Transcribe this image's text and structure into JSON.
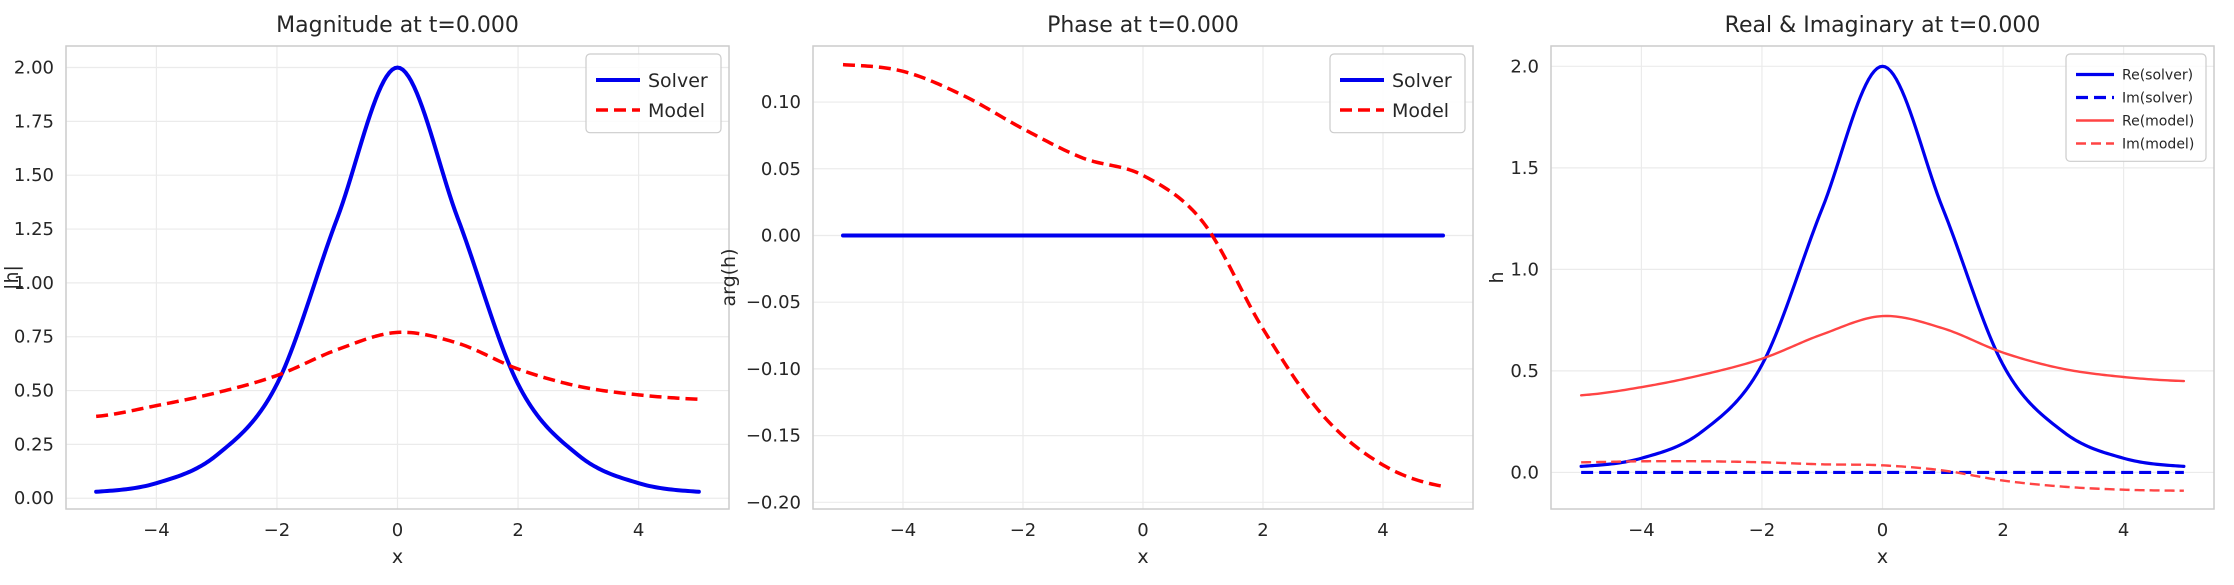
{
  "chart_data": [
    {
      "type": "line",
      "title": "Magnitude at t=0.000",
      "xlabel": "x",
      "ylabel": "|h|",
      "xlim": [
        -5.5,
        5.5
      ],
      "ylim": [
        -0.05,
        2.1
      ],
      "xticks": [
        -4,
        -2,
        0,
        2,
        4
      ],
      "xtick_labels": [
        "−4",
        "−2",
        "0",
        "2",
        "4"
      ],
      "yticks": [
        0,
        0.25,
        0.5,
        0.75,
        1.0,
        1.25,
        1.5,
        1.75,
        2.0
      ],
      "ytick_labels": [
        "0.00",
        "0.25",
        "0.50",
        "0.75",
        "1.00",
        "1.25",
        "1.50",
        "1.75",
        "2.00"
      ],
      "grid": true,
      "legend": "top-right",
      "x": [
        -5,
        -4,
        -3,
        -2,
        -1,
        0,
        1,
        2,
        3,
        4,
        5
      ],
      "series": [
        {
          "name": "Solver",
          "color": "#0000ee",
          "style": "solid",
          "width": 4,
          "values": [
            0.03,
            0.07,
            0.2,
            0.53,
            1.3,
            2.0,
            1.3,
            0.53,
            0.2,
            0.07,
            0.03
          ]
        },
        {
          "name": "Model",
          "color": "#ff0000",
          "style": "dashed",
          "width": 3.5,
          "values": [
            0.38,
            0.43,
            0.49,
            0.57,
            0.69,
            0.77,
            0.72,
            0.6,
            0.52,
            0.48,
            0.46
          ]
        }
      ]
    },
    {
      "type": "line",
      "title": "Phase at t=0.000",
      "xlabel": "x",
      "ylabel": "arg(h)",
      "xlim": [
        -5.5,
        5.5
      ],
      "ylim": [
        -0.205,
        0.142
      ],
      "xticks": [
        -4,
        -2,
        0,
        2,
        4
      ],
      "xtick_labels": [
        "−4",
        "−2",
        "0",
        "2",
        "4"
      ],
      "yticks": [
        -0.2,
        -0.15,
        -0.1,
        -0.05,
        0,
        0.05,
        0.1
      ],
      "ytick_labels": [
        "−0.20",
        "−0.15",
        "−0.10",
        "−0.05",
        "0.00",
        "0.05",
        "0.10"
      ],
      "grid": true,
      "legend": "top-right",
      "x": [
        -5,
        -4,
        -3,
        -2,
        -1,
        0,
        1,
        2,
        3,
        4,
        5
      ],
      "series": [
        {
          "name": "Solver",
          "color": "#0000ee",
          "style": "solid",
          "width": 4,
          "values": [
            0,
            0,
            0,
            0,
            0,
            0,
            0,
            0,
            0,
            0,
            0
          ]
        },
        {
          "name": "Model",
          "color": "#ff0000",
          "style": "dashed",
          "width": 3.5,
          "values": [
            0.128,
            0.123,
            0.105,
            0.08,
            0.058,
            0.045,
            0.01,
            -0.07,
            -0.135,
            -0.172,
            -0.188
          ]
        }
      ]
    },
    {
      "type": "line",
      "title": "Real & Imaginary at t=0.000",
      "xlabel": "x",
      "ylabel": "h",
      "xlim": [
        -5.5,
        5.5
      ],
      "ylim": [
        -0.18,
        2.1
      ],
      "xticks": [
        -4,
        -2,
        0,
        2,
        4
      ],
      "xtick_labels": [
        "−4",
        "−2",
        "0",
        "2",
        "4"
      ],
      "yticks": [
        0,
        0.5,
        1.0,
        1.5,
        2.0
      ],
      "ytick_labels": [
        "0.0",
        "0.5",
        "1.0",
        "1.5",
        "2.0"
      ],
      "grid": true,
      "legend": "top-right",
      "x": [
        -5,
        -4,
        -3,
        -2,
        -1,
        0,
        1,
        2,
        3,
        4,
        5
      ],
      "series": [
        {
          "name": "Re(solver)",
          "color": "#0000ee",
          "style": "solid",
          "width": 3.2,
          "values": [
            0.03,
            0.07,
            0.2,
            0.53,
            1.3,
            2.0,
            1.3,
            0.53,
            0.2,
            0.07,
            0.03
          ]
        },
        {
          "name": "Im(solver)",
          "color": "#0000ee",
          "style": "dashed",
          "width": 3.2,
          "values": [
            0,
            0,
            0,
            0,
            0,
            0,
            0,
            0,
            0,
            0,
            0
          ]
        },
        {
          "name": "Re(model)",
          "color": "#ff4444",
          "style": "solid",
          "width": 2.4,
          "values": [
            0.38,
            0.42,
            0.48,
            0.56,
            0.68,
            0.77,
            0.71,
            0.59,
            0.51,
            0.47,
            0.45
          ]
        },
        {
          "name": "Im(model)",
          "color": "#ff4444",
          "style": "dashed",
          "width": 2.4,
          "values": [
            0.05,
            0.055,
            0.055,
            0.05,
            0.04,
            0.035,
            0.01,
            -0.04,
            -0.07,
            -0.085,
            -0.09
          ]
        }
      ]
    }
  ]
}
